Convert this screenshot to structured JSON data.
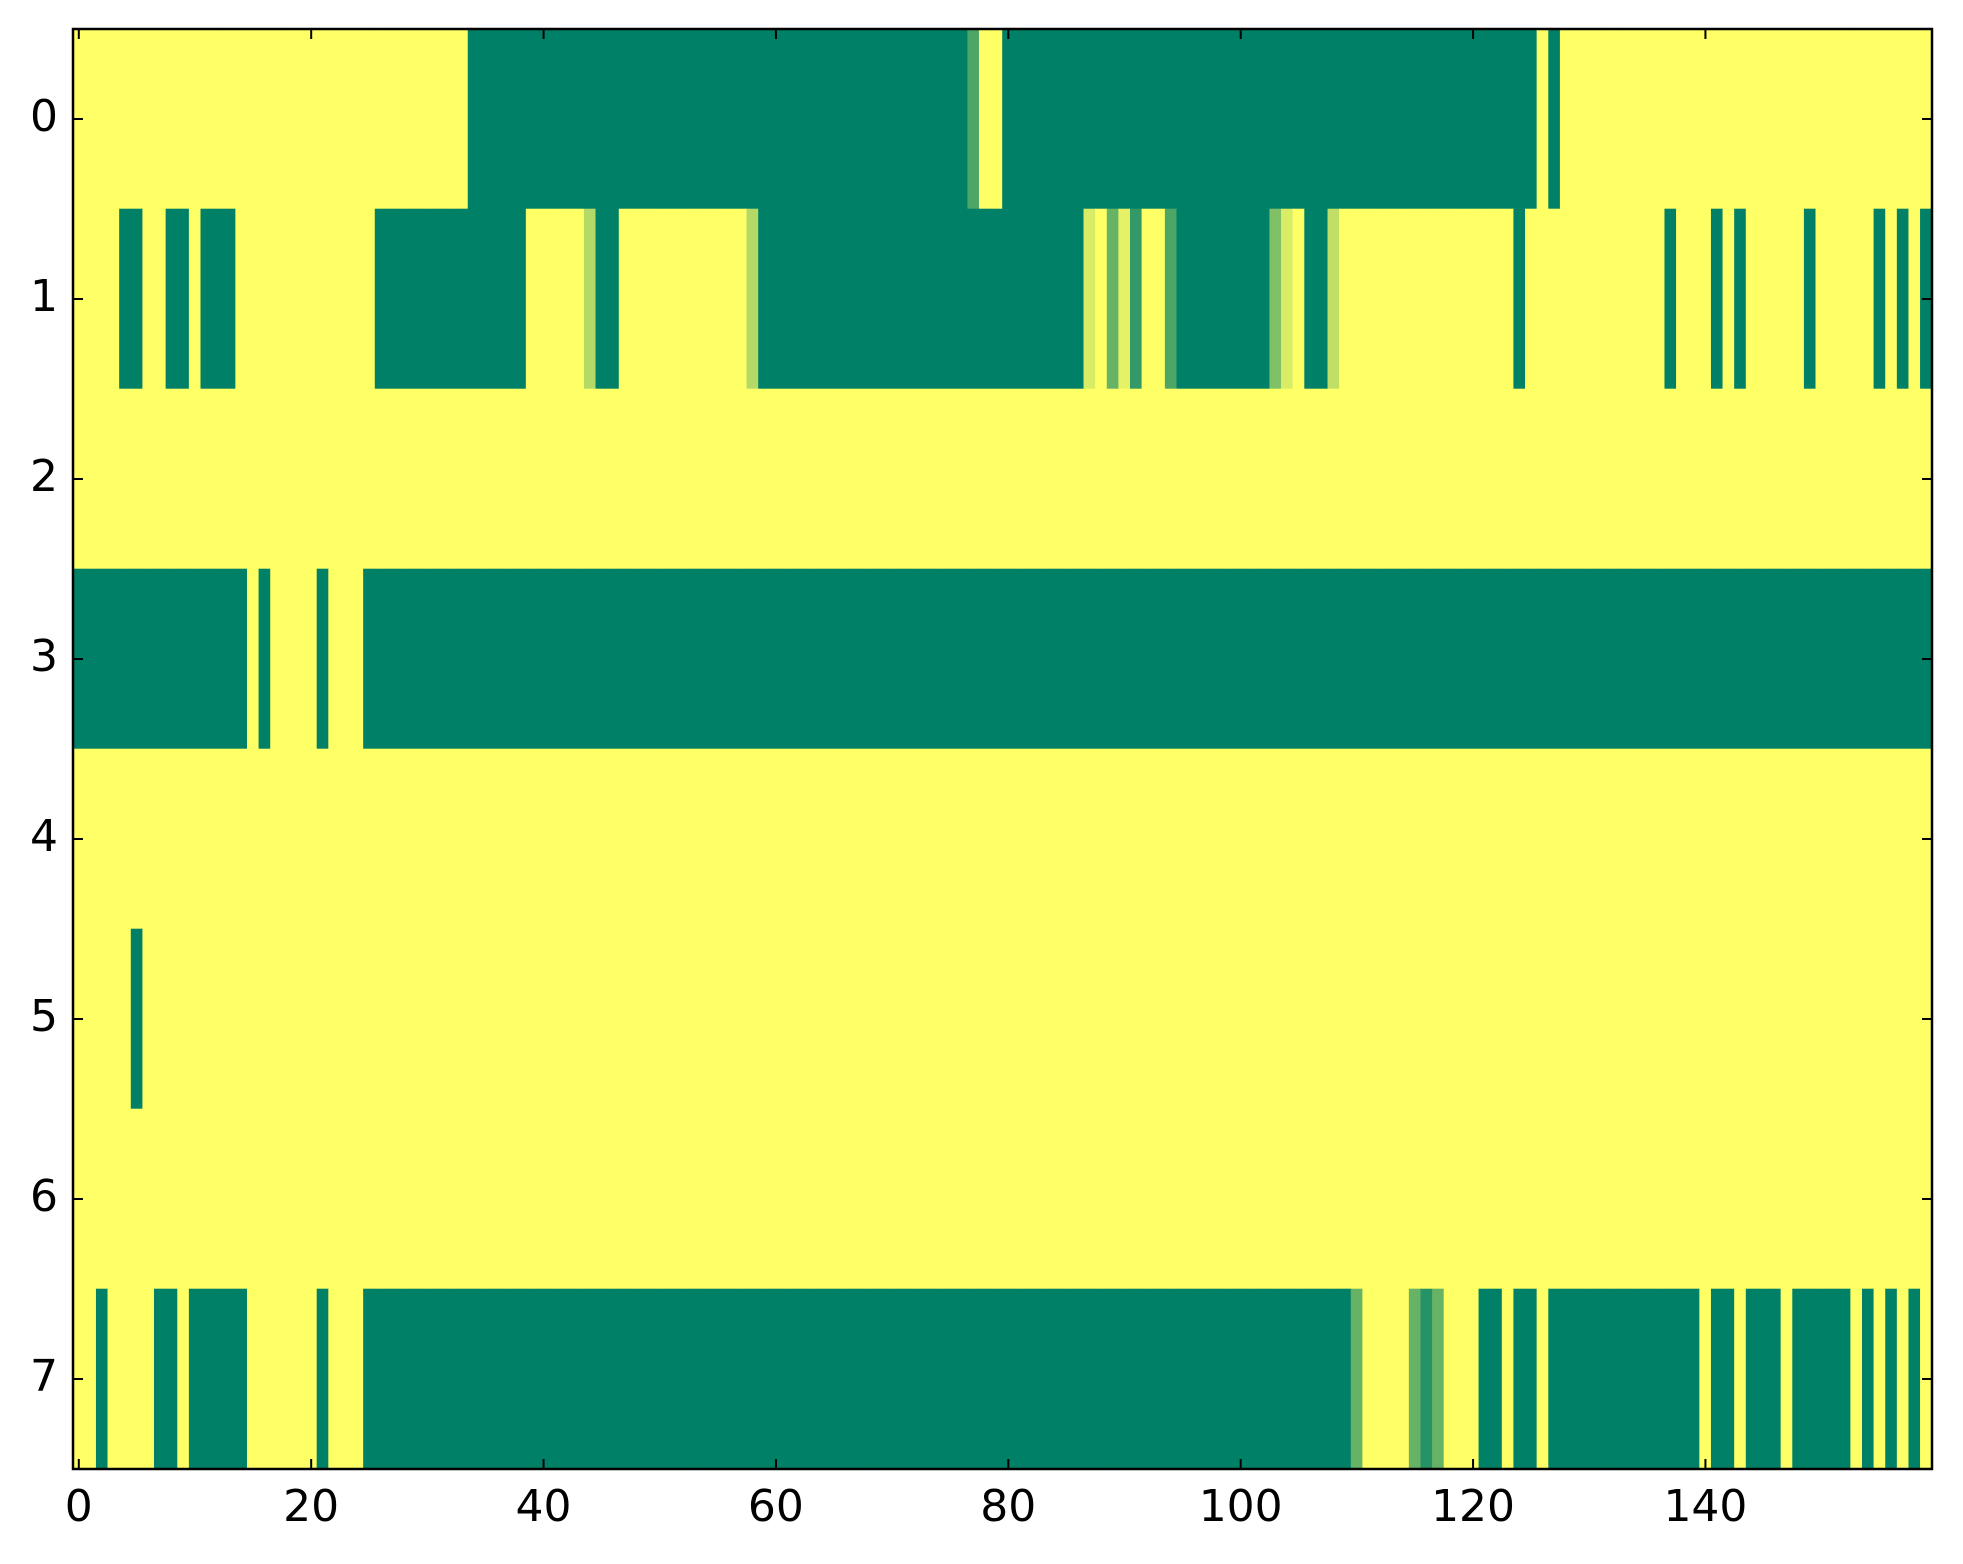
{
  "chart_data": {
    "type": "heatmap",
    "xlim": [
      -0.5,
      159.5
    ],
    "ylim": [
      7.5,
      -0.5
    ],
    "xticks": [
      0,
      20,
      40,
      60,
      80,
      100,
      120,
      140
    ],
    "yticks": [
      0,
      1,
      2,
      3,
      4,
      5,
      6,
      7
    ],
    "zlim": [
      0,
      1
    ],
    "color_low": "#008066",
    "color_high": "#ffff66",
    "values": [
      [
        1,
        1,
        1,
        1,
        1,
        1,
        1,
        1,
        1,
        1,
        1,
        1,
        1,
        1,
        1,
        1,
        1,
        1,
        1,
        1,
        1,
        1,
        1,
        1,
        1,
        1,
        1,
        1,
        1,
        1,
        1,
        1,
        1,
        1,
        0,
        0,
        0,
        0,
        0,
        0,
        0,
        0,
        0,
        0,
        0,
        0,
        0,
        0,
        0,
        0,
        0,
        0,
        0,
        0,
        0,
        0,
        0,
        0,
        0,
        0,
        0,
        0,
        0,
        0,
        0,
        0,
        0,
        0,
        0,
        0,
        0,
        0,
        0,
        0,
        0,
        0,
        0,
        0.3,
        1,
        1,
        0,
        0,
        0,
        0,
        0,
        0,
        0,
        0,
        0,
        0,
        0,
        0,
        0,
        0,
        0,
        0,
        0,
        0,
        0,
        0,
        0,
        0,
        0,
        0,
        0,
        0,
        0,
        0,
        0,
        0,
        0,
        0,
        0,
        0,
        0,
        0,
        0,
        0,
        0,
        0,
        0,
        0,
        0,
        0,
        0,
        0,
        1,
        0,
        1,
        1,
        1,
        1,
        1,
        1,
        1,
        1,
        1,
        1,
        1,
        1,
        1,
        1,
        1,
        1,
        1,
        1,
        1,
        1,
        1,
        1,
        1,
        1,
        1,
        1,
        1,
        1,
        1,
        1,
        1,
        1
      ],
      [
        1,
        1,
        1,
        1,
        0,
        0,
        1,
        1,
        0,
        0,
        1,
        0,
        0,
        0,
        1,
        1,
        1,
        1,
        1,
        1,
        1,
        1,
        1,
        1,
        1,
        1,
        0,
        0,
        0,
        0,
        0,
        0,
        0,
        0,
        0,
        0,
        0,
        0,
        0,
        1,
        1,
        1,
        1,
        1,
        0.7,
        0,
        0,
        1,
        1,
        1,
        1,
        1,
        1,
        1,
        1,
        1,
        1,
        1,
        0.7,
        0,
        0,
        0,
        0,
        0,
        0,
        0,
        0,
        0,
        0,
        0,
        0,
        0,
        0,
        0,
        0,
        0,
        0,
        0,
        0,
        0,
        0,
        0,
        0,
        0,
        0,
        0,
        0,
        0.85,
        1,
        0.4,
        0.9,
        0.2,
        1,
        1,
        0.3,
        0,
        0,
        0,
        0,
        0,
        0,
        0,
        0,
        0.5,
        0.85,
        1,
        0,
        0,
        0.75,
        1,
        1,
        1,
        1,
        1,
        1,
        1,
        1,
        1,
        1,
        1,
        1,
        1,
        1,
        1,
        0,
        1,
        1,
        1,
        1,
        1,
        1,
        1,
        1,
        1,
        1,
        1,
        1,
        0,
        1,
        1,
        1,
        0,
        1,
        0,
        1,
        1,
        1,
        1,
        1,
        0,
        1,
        1,
        1,
        1,
        1,
        0,
        1,
        0,
        1,
        0
      ],
      [
        1,
        1,
        1,
        1,
        1,
        1,
        1,
        1,
        1,
        1,
        1,
        1,
        1,
        1,
        1,
        1,
        1,
        1,
        1,
        1,
        1,
        1,
        1,
        1,
        1,
        1,
        1,
        1,
        1,
        1,
        1,
        1,
        1,
        1,
        1,
        1,
        1,
        1,
        1,
        1,
        1,
        1,
        1,
        1,
        1,
        1,
        1,
        1,
        1,
        1,
        1,
        1,
        1,
        1,
        1,
        1,
        1,
        1,
        1,
        1,
        1,
        1,
        1,
        1,
        1,
        1,
        1,
        1,
        1,
        1,
        1,
        1,
        1,
        1,
        1,
        1,
        1,
        1,
        1,
        1,
        1,
        1,
        1,
        1,
        1,
        1,
        1,
        1,
        1,
        1,
        1,
        1,
        1,
        1,
        1,
        1,
        1,
        1,
        1,
        1,
        1,
        1,
        1,
        1,
        1,
        1,
        1,
        1,
        1,
        1,
        1,
        1,
        1,
        1,
        1,
        1,
        1,
        1,
        1,
        1,
        1,
        1,
        1,
        1,
        1,
        1,
        1,
        1,
        1,
        1,
        1,
        1,
        1,
        1,
        1,
        1,
        1,
        1,
        1,
        1,
        1,
        1,
        1,
        1,
        1,
        1,
        1,
        1,
        1,
        1,
        1,
        1,
        1,
        1,
        1,
        1,
        1,
        1,
        1,
        1
      ],
      [
        0,
        0,
        0,
        0,
        0,
        0,
        0,
        0,
        0,
        0,
        0,
        0,
        0,
        0,
        0,
        1,
        0,
        1,
        1,
        1,
        1,
        0,
        1,
        1,
        1,
        0,
        0,
        0,
        0,
        0,
        0,
        0,
        0,
        0,
        0,
        0,
        0,
        0,
        0,
        0,
        0,
        0,
        0,
        0,
        0,
        0,
        0,
        0,
        0,
        0,
        0,
        0,
        0,
        0,
        0,
        0,
        0,
        0,
        0,
        0,
        0,
        0,
        0,
        0,
        0,
        0,
        0,
        0,
        0,
        0,
        0,
        0,
        0,
        0,
        0,
        0,
        0,
        0,
        0,
        0,
        0,
        0,
        0,
        0,
        0,
        0,
        0,
        0,
        0,
        0,
        0,
        0,
        0,
        0,
        0,
        0,
        0,
        0,
        0,
        0,
        0,
        0,
        0,
        0,
        0,
        0,
        0,
        0,
        0,
        0,
        0,
        0,
        0,
        0,
        0,
        0,
        0,
        0,
        0,
        0,
        0,
        0,
        0,
        0,
        0,
        0,
        0,
        0,
        0,
        0,
        0,
        0,
        0,
        0,
        0,
        0,
        0,
        0,
        0,
        0,
        0,
        0,
        0,
        0,
        0,
        0,
        0,
        0,
        0,
        0,
        0,
        0,
        0,
        0,
        0,
        0,
        0,
        0,
        0,
        0
      ],
      [
        1,
        1,
        1,
        1,
        1,
        1,
        1,
        1,
        1,
        1,
        1,
        1,
        1,
        1,
        1,
        1,
        1,
        1,
        1,
        1,
        1,
        1,
        1,
        1,
        1,
        1,
        1,
        1,
        1,
        1,
        1,
        1,
        1,
        1,
        1,
        1,
        1,
        1,
        1,
        1,
        1,
        1,
        1,
        1,
        1,
        1,
        1,
        1,
        1,
        1,
        1,
        1,
        1,
        1,
        1,
        1,
        1,
        1,
        1,
        1,
        1,
        1,
        1,
        1,
        1,
        1,
        1,
        1,
        1,
        1,
        1,
        1,
        1,
        1,
        1,
        1,
        1,
        1,
        1,
        1,
        1,
        1,
        1,
        1,
        1,
        1,
        1,
        1,
        1,
        1,
        1,
        1,
        1,
        1,
        1,
        1,
        1,
        1,
        1,
        1,
        1,
        1,
        1,
        1,
        1,
        1,
        1,
        1,
        1,
        1,
        1,
        1,
        1,
        1,
        1,
        1,
        1,
        1,
        1,
        1,
        1,
        1,
        1,
        1,
        1,
        1,
        1,
        1,
        1,
        1,
        1,
        1,
        1,
        1,
        1,
        1,
        1,
        1,
        1,
        1,
        1,
        1,
        1,
        1,
        1,
        1,
        1,
        1,
        1,
        1,
        1,
        1,
        1,
        1,
        1,
        1,
        1,
        1,
        1,
        1
      ],
      [
        1,
        1,
        1,
        1,
        1,
        0,
        1,
        1,
        1,
        1,
        1,
        1,
        1,
        1,
        1,
        1,
        1,
        1,
        1,
        1,
        1,
        1,
        1,
        1,
        1,
        1,
        1,
        1,
        1,
        1,
        1,
        1,
        1,
        1,
        1,
        1,
        1,
        1,
        1,
        1,
        1,
        1,
        1,
        1,
        1,
        1,
        1,
        1,
        1,
        1,
        1,
        1,
        1,
        1,
        1,
        1,
        1,
        1,
        1,
        1,
        1,
        1,
        1,
        1,
        1,
        1,
        1,
        1,
        1,
        1,
        1,
        1,
        1,
        1,
        1,
        1,
        1,
        1,
        1,
        1,
        1,
        1,
        1,
        1,
        1,
        1,
        1,
        1,
        1,
        1,
        1,
        1,
        1,
        1,
        1,
        1,
        1,
        1,
        1,
        1,
        1,
        1,
        1,
        1,
        1,
        1,
        1,
        1,
        1,
        1,
        1,
        1,
        1,
        1,
        1,
        1,
        1,
        1,
        1,
        1,
        1,
        1,
        1,
        1,
        1,
        1,
        1,
        1,
        1,
        1,
        1,
        1,
        1,
        1,
        1,
        1,
        1,
        1,
        1,
        1,
        1,
        1,
        1,
        1,
        1,
        1,
        1,
        1,
        1,
        1,
        1,
        1,
        1,
        1,
        1,
        1,
        1,
        1,
        1,
        1
      ],
      [
        1,
        1,
        1,
        1,
        1,
        1,
        1,
        1,
        1,
        1,
        1,
        1,
        1,
        1,
        1,
        1,
        1,
        1,
        1,
        1,
        1,
        1,
        1,
        1,
        1,
        1,
        1,
        1,
        1,
        1,
        1,
        1,
        1,
        1,
        1,
        1,
        1,
        1,
        1,
        1,
        1,
        1,
        1,
        1,
        1,
        1,
        1,
        1,
        1,
        1,
        1,
        1,
        1,
        1,
        1,
        1,
        1,
        1,
        1,
        1,
        1,
        1,
        1,
        1,
        1,
        1,
        1,
        1,
        1,
        1,
        1,
        1,
        1,
        1,
        1,
        1,
        1,
        1,
        1,
        1,
        1,
        1,
        1,
        1,
        1,
        1,
        1,
        1,
        1,
        1,
        1,
        1,
        1,
        1,
        1,
        1,
        1,
        1,
        1,
        1,
        1,
        1,
        1,
        1,
        1,
        1,
        1,
        1,
        1,
        1,
        1,
        1,
        1,
        1,
        1,
        1,
        1,
        1,
        1,
        1,
        1,
        1,
        1,
        1,
        1,
        1,
        1,
        1,
        1,
        1,
        1,
        1,
        1,
        1,
        1,
        1,
        1,
        1,
        1,
        1,
        1,
        1,
        1,
        1,
        1,
        1,
        1,
        1,
        1,
        1,
        1,
        1,
        1,
        1,
        1,
        1,
        1,
        1,
        1,
        1
      ],
      [
        1,
        1,
        0,
        1,
        1,
        1,
        1,
        0,
        0,
        1,
        0,
        0,
        0,
        0,
        0,
        1,
        1,
        1,
        1,
        1,
        1,
        0,
        1,
        1,
        1,
        0,
        0,
        0,
        0,
        0,
        0,
        0,
        0,
        0,
        0,
        0,
        0,
        0,
        0,
        0,
        0,
        0,
        0,
        0,
        0,
        0,
        0,
        0,
        0,
        0,
        0,
        0,
        0,
        0,
        0,
        0,
        0,
        0,
        0,
        0,
        0,
        0,
        0,
        0,
        0,
        0,
        0,
        0,
        0,
        0,
        0,
        0,
        0,
        0,
        0,
        0,
        0,
        0,
        0,
        0,
        0,
        0,
        0,
        0,
        0,
        0,
        0,
        0,
        0,
        0,
        0,
        0,
        0,
        0,
        0,
        0,
        0,
        0,
        0,
        0,
        0,
        0,
        0,
        0,
        0,
        0,
        0,
        0,
        0,
        0,
        0.4,
        1,
        1,
        1,
        1,
        0.4,
        0.15,
        0.4,
        1,
        1,
        1,
        0,
        0,
        1,
        0,
        0,
        1,
        0,
        0,
        0,
        0,
        0,
        0,
        0,
        0,
        0,
        0,
        0,
        0,
        0,
        1,
        0,
        0,
        1,
        0,
        0,
        0,
        1,
        0,
        0,
        0,
        0,
        0,
        1,
        0,
        1,
        0,
        1,
        0,
        1
      ]
    ]
  }
}
